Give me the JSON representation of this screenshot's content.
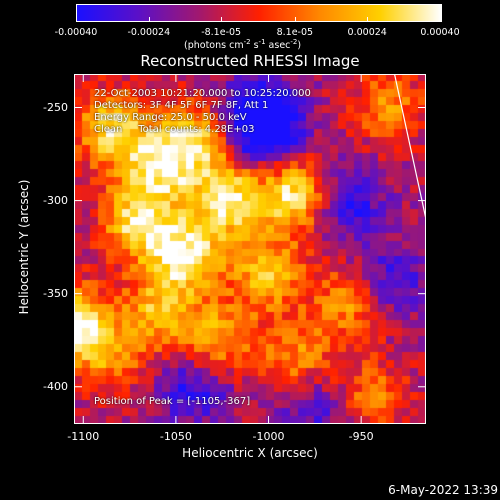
{
  "chart_data": {
    "type": "heatmap",
    "title": "Reconstructed RHESSI Image",
    "xlabel": "Heliocentric X (arcsec)",
    "ylabel": "Heliocentric Y (arcsec)",
    "xlim": [
      -1105,
      -915
    ],
    "ylim": [
      -420,
      -232
    ],
    "x_ticks": [
      "-1100",
      "-1050",
      "-1000",
      "-950"
    ],
    "y_ticks": [
      "-250",
      "-300",
      "-350",
      "-400"
    ],
    "x_tick_values": [
      -1100,
      -1050,
      -1000,
      -950
    ],
    "y_tick_values": [
      -250,
      -300,
      -350,
      -400
    ],
    "colorbar": {
      "range": [
        -0.0004,
        0.0004
      ],
      "tick_labels": [
        "-0.00040",
        "-0.00024",
        "-8.1e-05",
        "8.1e-05",
        "0.00024",
        "0.00040"
      ],
      "tick_values": [
        -0.0004,
        -0.00024,
        -8.1e-05,
        8.1e-05,
        0.00024,
        0.0004
      ],
      "units_text": "(photons cm",
      "units_sup1": "-2",
      "units_text2": " s",
      "units_sup2": "-1",
      "units_text3": " asec",
      "units_sup3": "-2",
      "units_text4": ")",
      "colors": [
        "#1a10ff",
        "#5a10c8",
        "#a01870",
        "#ff2000",
        "#ff8800",
        "#ffd000",
        "#ffffff"
      ]
    },
    "annotations": [
      "22-Oct-2003 10:21:20.000 to 10:25:20.000",
      "Detectors: 3F 4F 5F 6F 7F 8F, Att 1",
      "Energy Range: 25.0 - 50.0 keV",
      "Clean     Total counts: 4.28E+03"
    ],
    "peak_label": "Position of Peak = [-1105,-367]",
    "peak_position": [
      -1105,
      -367
    ],
    "limb_line": [
      [
        -932,
        -232
      ],
      [
        -915,
        -310
      ]
    ],
    "hotspots": [
      {
        "x": -1085,
        "y": -262,
        "v": 0.0003
      },
      {
        "x": -1060,
        "y": -282,
        "v": 0.00026
      },
      {
        "x": -1040,
        "y": -268,
        "v": 0.00028
      },
      {
        "x": -1070,
        "y": -312,
        "v": 0.00032
      },
      {
        "x": -1045,
        "y": -330,
        "v": 0.00036
      },
      {
        "x": -1022,
        "y": -300,
        "v": 0.00034
      },
      {
        "x": -1000,
        "y": -340,
        "v": 0.00024
      },
      {
        "x": -985,
        "y": -297,
        "v": 0.00038
      },
      {
        "x": -1105,
        "y": -367,
        "v": 0.0004
      },
      {
        "x": -1060,
        "y": -360,
        "v": 0.0002
      },
      {
        "x": -1028,
        "y": -375,
        "v": 0.00022
      },
      {
        "x": -985,
        "y": -385,
        "v": 0.00016
      },
      {
        "x": -955,
        "y": -355,
        "v": 0.00018
      },
      {
        "x": -935,
        "y": -250,
        "v": 0.00014
      },
      {
        "x": -945,
        "y": -405,
        "v": 0.00012
      },
      {
        "x": -1085,
        "y": -385,
        "v": 0.0001
      }
    ],
    "coldspots": [
      {
        "x": -1005,
        "y": -255,
        "v": -0.00034
      },
      {
        "x": -960,
        "y": -300,
        "v": -0.0003
      },
      {
        "x": -935,
        "y": -345,
        "v": -0.00024
      },
      {
        "x": -1040,
        "y": -400,
        "v": -0.00026
      },
      {
        "x": -975,
        "y": -410,
        "v": -0.0002
      },
      {
        "x": -1000,
        "y": -265,
        "v": -0.00028
      }
    ]
  },
  "footer": {
    "date": "6-May-2022 13:39"
  }
}
